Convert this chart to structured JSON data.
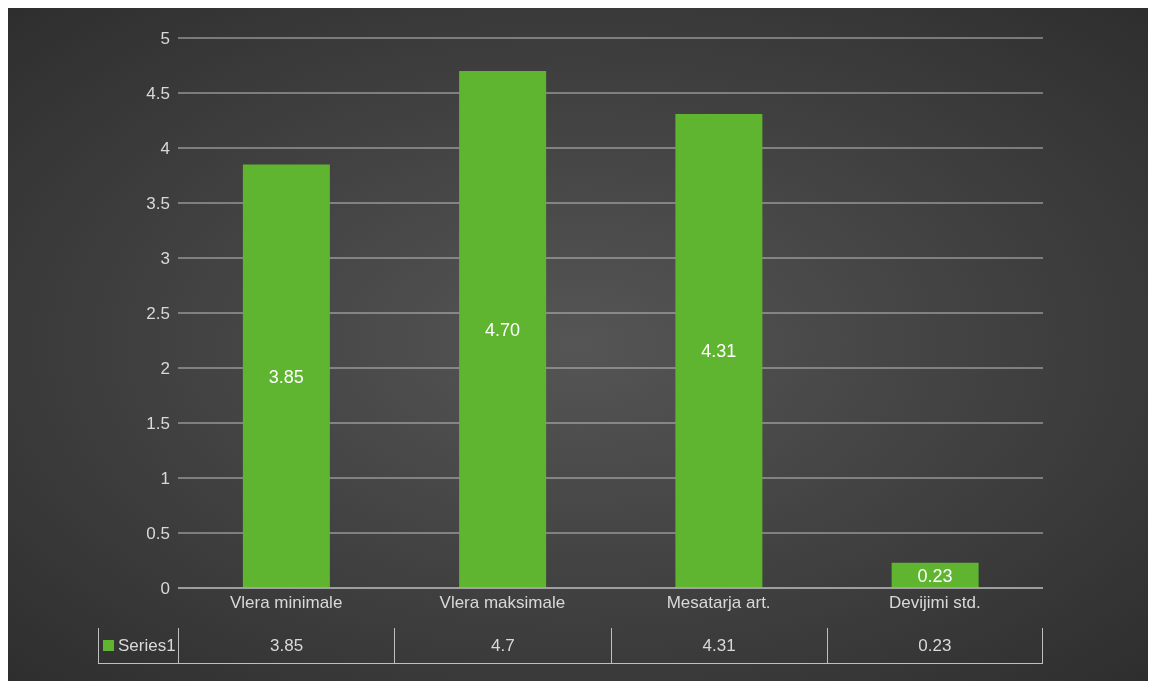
{
  "chart_data": {
    "type": "bar",
    "categories": [
      "Vlera minimale",
      "Vlera maksimale",
      "Mesatarja art.",
      "Devijimi std."
    ],
    "series": [
      {
        "name": "Series1",
        "color": "#5fb52f",
        "values": [
          3.85,
          4.7,
          4.31,
          0.23
        ],
        "value_labels": [
          "3.85",
          "4.70",
          "4.31",
          "0.23"
        ]
      }
    ],
    "ylim": [
      0,
      5
    ],
    "yticks": [
      0,
      0.5,
      1,
      1.5,
      2,
      2.5,
      3,
      3.5,
      4,
      4.5,
      5
    ],
    "grid": "y",
    "legend": "bottom",
    "annotations": [
      "3.85",
      "4.7",
      "4.31",
      "0.23"
    ]
  }
}
